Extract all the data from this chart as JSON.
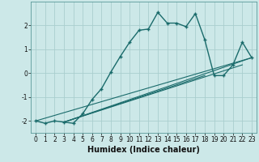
{
  "xlabel": "Humidex (Indice chaleur)",
  "ylabel": "",
  "background_color": "#cce8e8",
  "grid_color": "#aacece",
  "line_color": "#1a6b6b",
  "xlim": [
    -0.5,
    23.5
  ],
  "ylim": [
    -2.5,
    3.0
  ],
  "yticks": [
    -2,
    -1,
    0,
    1,
    2
  ],
  "xticks": [
    0,
    1,
    2,
    3,
    4,
    5,
    6,
    7,
    8,
    9,
    10,
    11,
    12,
    13,
    14,
    15,
    16,
    17,
    18,
    19,
    20,
    21,
    22,
    23
  ],
  "curve_x": [
    0,
    1,
    2,
    3,
    4,
    5,
    6,
    7,
    8,
    9,
    10,
    11,
    12,
    13,
    14,
    15,
    16,
    17,
    18,
    19,
    20,
    21,
    22,
    23
  ],
  "curve_y": [
    -2.0,
    -2.1,
    -2.0,
    -2.05,
    -2.1,
    -1.7,
    -1.1,
    -0.65,
    0.05,
    0.7,
    1.3,
    1.8,
    1.85,
    2.55,
    2.1,
    2.1,
    1.95,
    2.5,
    1.4,
    -0.1,
    -0.1,
    0.35,
    1.3,
    0.65
  ],
  "linear_lines": [
    {
      "x": [
        0,
        23
      ],
      "y": [
        -2.0,
        0.65
      ]
    },
    {
      "x": [
        3,
        18
      ],
      "y": [
        -2.05,
        -0.1
      ]
    },
    {
      "x": [
        3,
        22
      ],
      "y": [
        -2.05,
        0.35
      ]
    },
    {
      "x": [
        3,
        23
      ],
      "y": [
        -2.05,
        0.65
      ]
    }
  ]
}
